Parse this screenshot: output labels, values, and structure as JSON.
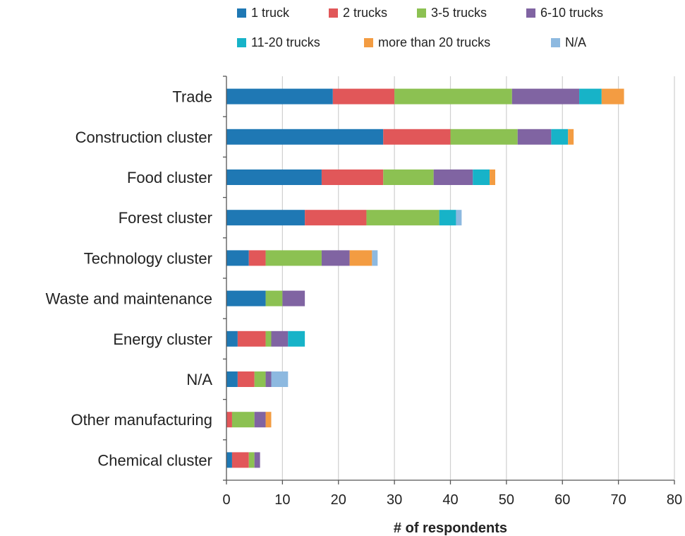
{
  "chart_data": {
    "type": "bar",
    "orientation": "horizontal",
    "stacked": true,
    "title": "",
    "xlabel": "# of respondents",
    "ylabel": "",
    "xlim": [
      0,
      80
    ],
    "xticks": [
      0,
      10,
      20,
      30,
      40,
      50,
      60,
      70,
      80
    ],
    "grid": "vertical",
    "legend_position": "top",
    "categories": [
      "Trade",
      "Construction cluster",
      "Food cluster",
      "Forest cluster",
      "Technology cluster",
      "Waste and maintenance",
      "Energy cluster",
      "N/A",
      "Other manufacturing",
      "Chemical cluster"
    ],
    "series": [
      {
        "name": "1 truck",
        "color": "#1f78b4",
        "values": [
          19,
          28,
          17,
          14,
          4,
          7,
          2,
          2,
          0,
          1
        ]
      },
      {
        "name": "2 trucks",
        "color": "#e15759",
        "values": [
          11,
          12,
          11,
          11,
          3,
          0,
          5,
          3,
          1,
          3
        ]
      },
      {
        "name": "3-5 trucks",
        "color": "#8cc152",
        "values": [
          21,
          12,
          9,
          13,
          10,
          3,
          1,
          2,
          4,
          1
        ]
      },
      {
        "name": "6-10 trucks",
        "color": "#8064a2",
        "values": [
          12,
          6,
          7,
          0,
          5,
          4,
          3,
          1,
          2,
          1
        ]
      },
      {
        "name": "11-20 trucks",
        "color": "#17b3c8",
        "values": [
          4,
          3,
          3,
          3,
          0,
          0,
          3,
          0,
          0,
          0
        ]
      },
      {
        "name": "more than 20 trucks",
        "color": "#f39c42",
        "values": [
          4,
          1,
          1,
          0,
          4,
          0,
          0,
          0,
          1,
          0
        ]
      },
      {
        "name": "N/A",
        "color": "#8db9e0",
        "values": [
          0,
          0,
          0,
          1,
          1,
          0,
          0,
          3,
          0,
          0
        ]
      }
    ]
  }
}
